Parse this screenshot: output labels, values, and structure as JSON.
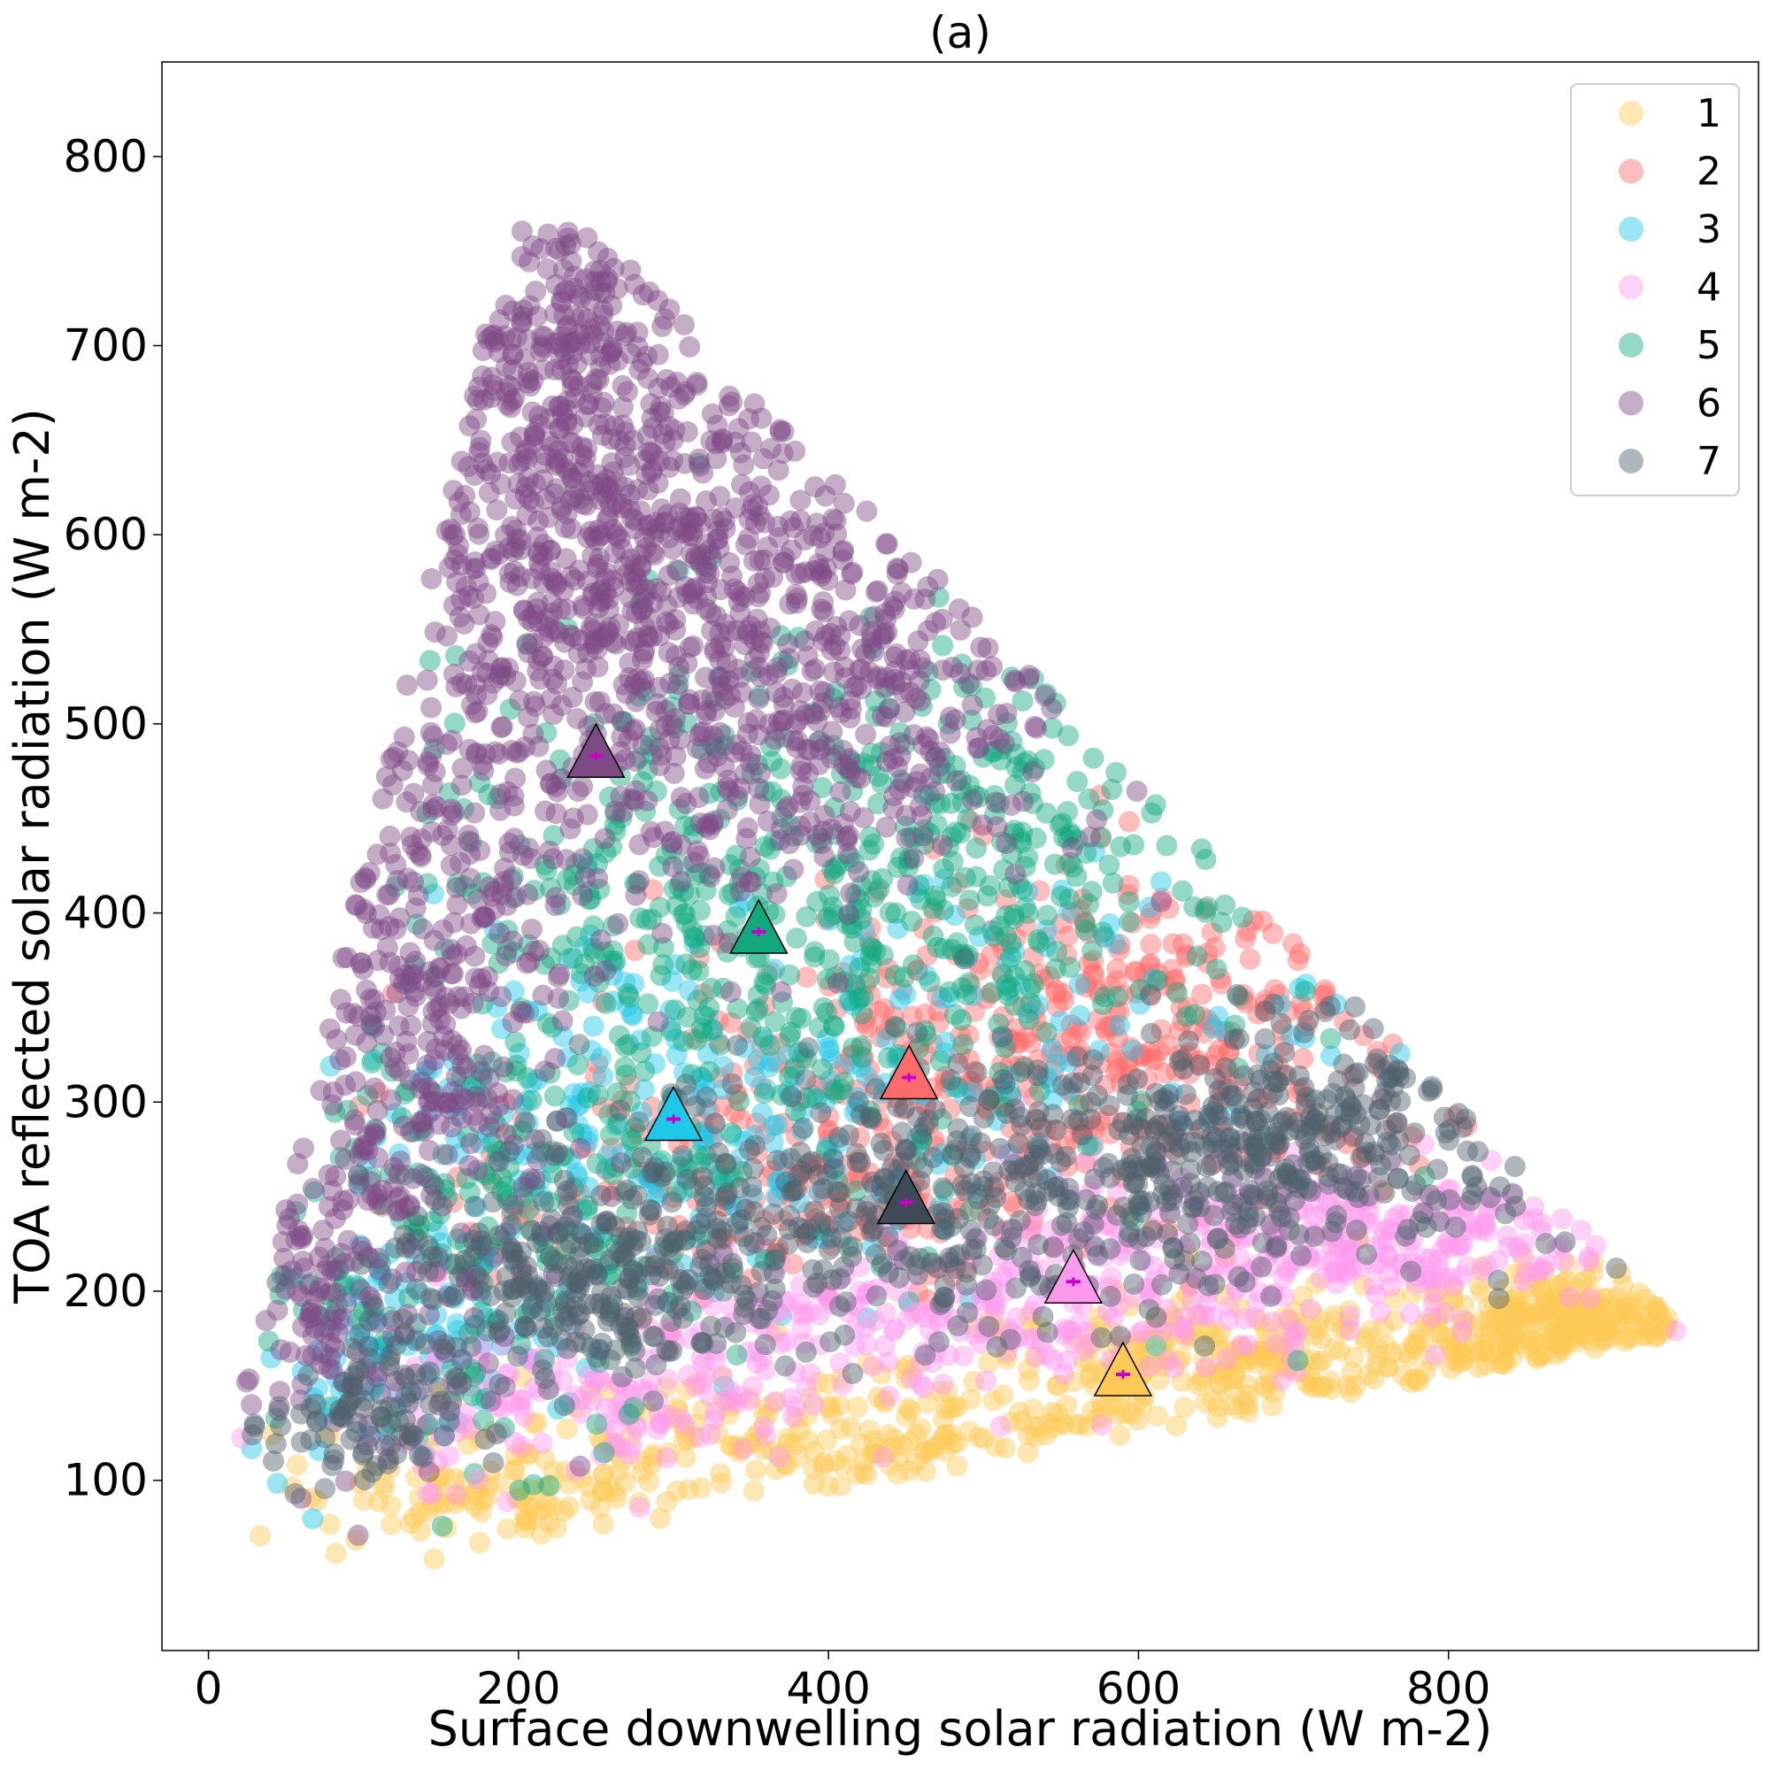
{
  "chart_data": {
    "type": "scatter",
    "title": "(a)",
    "xlabel": "Surface downwelling solar radiation (W m-2)",
    "ylabel": "TOA reflected solar radiation (W m-2)",
    "xlim": [
      -30,
      1000
    ],
    "ylim": [
      10,
      850
    ],
    "x_ticks": [
      0,
      200,
      400,
      600,
      800
    ],
    "y_ticks": [
      100,
      200,
      300,
      400,
      500,
      600,
      700,
      800
    ],
    "grid": false,
    "legend_position": "top-right",
    "series": [
      {
        "name": "1",
        "color": "#fcc957",
        "centroid": {
          "x": 590,
          "y": 156
        },
        "centroid_color": "#fcc957",
        "clusters": [
          {
            "cx": 880,
            "cy": 180,
            "sx": 50,
            "sy": 15,
            "n": 350
          },
          {
            "cx": 680,
            "cy": 160,
            "sx": 110,
            "sy": 18,
            "n": 300
          },
          {
            "cx": 420,
            "cy": 120,
            "sx": 130,
            "sy": 18,
            "n": 250
          },
          {
            "cx": 190,
            "cy": 90,
            "sx": 70,
            "sy": 15,
            "n": 120
          }
        ]
      },
      {
        "name": "2",
        "color": "#ff6b6b",
        "centroid": {
          "x": 452,
          "y": 313
        },
        "centroid_color": "#ff6b6b",
        "clusters": [
          {
            "cx": 620,
            "cy": 340,
            "sx": 110,
            "sy": 45,
            "n": 300
          },
          {
            "cx": 450,
            "cy": 300,
            "sx": 110,
            "sy": 45,
            "n": 250
          },
          {
            "cx": 330,
            "cy": 250,
            "sx": 90,
            "sy": 30,
            "n": 100
          }
        ]
      },
      {
        "name": "3",
        "color": "#1ec8e8",
        "centroid": {
          "x": 300,
          "y": 291
        },
        "centroid_color": "#1ec8e8",
        "clusters": [
          {
            "cx": 300,
            "cy": 290,
            "sx": 110,
            "sy": 55,
            "n": 250
          },
          {
            "cx": 120,
            "cy": 170,
            "sx": 50,
            "sy": 30,
            "n": 90
          },
          {
            "cx": 520,
            "cy": 350,
            "sx": 100,
            "sy": 40,
            "n": 90
          }
        ]
      },
      {
        "name": "4",
        "color": "#ff99ee",
        "centroid": {
          "x": 558,
          "y": 205
        },
        "centroid_color": "#ff99ee",
        "clusters": [
          {
            "cx": 720,
            "cy": 230,
            "sx": 100,
            "sy": 20,
            "n": 300
          },
          {
            "cx": 500,
            "cy": 190,
            "sx": 120,
            "sy": 20,
            "n": 250
          },
          {
            "cx": 250,
            "cy": 140,
            "sx": 80,
            "sy": 20,
            "n": 150
          }
        ]
      },
      {
        "name": "5",
        "color": "#11a87e",
        "centroid": {
          "x": 355,
          "y": 390
        },
        "centroid_color": "#11a87e",
        "clusters": [
          {
            "cx": 370,
            "cy": 390,
            "sx": 130,
            "sy": 75,
            "n": 550
          },
          {
            "cx": 180,
            "cy": 230,
            "sx": 70,
            "sy": 55,
            "n": 200
          },
          {
            "cx": 560,
            "cy": 450,
            "sx": 80,
            "sy": 40,
            "n": 150
          }
        ]
      },
      {
        "name": "6",
        "color": "#7e4a84",
        "centroid": {
          "x": 250,
          "y": 483
        },
        "centroid_color": "#7e4a84",
        "clusters": [
          {
            "cx": 250,
            "cy": 600,
            "sx": 70,
            "sy": 70,
            "n": 700
          },
          {
            "cx": 140,
            "cy": 350,
            "sx": 55,
            "sy": 100,
            "n": 500
          },
          {
            "cx": 400,
            "cy": 520,
            "sx": 90,
            "sy": 55,
            "n": 500
          },
          {
            "cx": 220,
            "cy": 720,
            "sx": 35,
            "sy": 35,
            "n": 140
          },
          {
            "cx": 70,
            "cy": 200,
            "sx": 30,
            "sy": 40,
            "n": 120
          }
        ]
      },
      {
        "name": "7",
        "color": "#4e5f6d",
        "centroid": {
          "x": 450,
          "y": 247
        },
        "centroid_color": "#3e4a55",
        "clusters": [
          {
            "cx": 700,
            "cy": 280,
            "sx": 90,
            "sy": 30,
            "n": 400
          },
          {
            "cx": 470,
            "cy": 250,
            "sx": 110,
            "sy": 35,
            "n": 400
          },
          {
            "cx": 250,
            "cy": 200,
            "sx": 70,
            "sy": 25,
            "n": 250
          },
          {
            "cx": 100,
            "cy": 130,
            "sx": 30,
            "sy": 20,
            "n": 100
          }
        ]
      }
    ]
  }
}
